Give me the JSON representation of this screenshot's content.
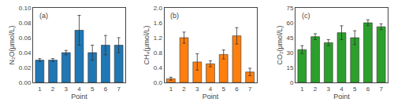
{
  "chart_data": [
    {
      "type": "bar",
      "annotations": [
        "(a)"
      ],
      "xlabel": "Point",
      "ylabel": "N₂O(μmol/L)",
      "x": [
        1,
        2,
        3,
        4,
        5,
        6,
        7
      ],
      "values": [
        0.03,
        0.03,
        0.04,
        0.07,
        0.04,
        0.05,
        0.05
      ],
      "errors": [
        0.002,
        0.002,
        0.003,
        0.02,
        0.01,
        0.013,
        0.01
      ],
      "xlim": [
        0.5,
        7.5
      ],
      "xticks": [
        1,
        2,
        3,
        4,
        5,
        6,
        7
      ],
      "ylim": [
        0.0,
        0.1
      ],
      "yticks": [
        {
          "value": 0.0,
          "label": "0.00"
        },
        0.02,
        0.04,
        0.06,
        0.08,
        {
          "value": 0.1,
          "label": "0.10"
        }
      ],
      "grid": false
    },
    {
      "type": "bar",
      "annotations": [
        "(b)"
      ],
      "xlabel": "Point",
      "ylabel": "CH₄(μmol/L)",
      "x": [
        1,
        2,
        3,
        4,
        5,
        6,
        7
      ],
      "values": [
        0.1,
        1.2,
        0.55,
        0.5,
        0.75,
        1.25,
        0.28
      ],
      "errors": [
        0.04,
        0.15,
        0.22,
        0.08,
        0.12,
        0.22,
        0.1
      ],
      "xlim": [
        0.5,
        7.5
      ],
      "xticks": [
        1,
        2,
        3,
        4,
        5,
        6,
        7
      ],
      "ylim": [
        0.0,
        2.0
      ],
      "yticks": [
        {
          "value": 0.0,
          "label": "0.0"
        },
        0.4,
        0.8,
        1.2,
        1.6,
        {
          "value": 2.0,
          "label": "2.0"
        }
      ],
      "grid": false
    },
    {
      "type": "bar",
      "annotations": [
        "(c)"
      ],
      "xlabel": "Point",
      "ylabel": "CO₂(μmol/L)",
      "x": [
        1,
        2,
        3,
        4,
        5,
        6,
        7
      ],
      "values": [
        33,
        46,
        40,
        50,
        45,
        60,
        56
      ],
      "errors": [
        4,
        3,
        3,
        7,
        7,
        3,
        3
      ],
      "xlim": [
        0.5,
        7.5
      ],
      "xticks": [
        1,
        2,
        3,
        4,
        5,
        6,
        7
      ],
      "ylim": [
        0,
        75
      ],
      "yticks": [
        0,
        15,
        30,
        45,
        60,
        75
      ],
      "grid": false
    }
  ]
}
